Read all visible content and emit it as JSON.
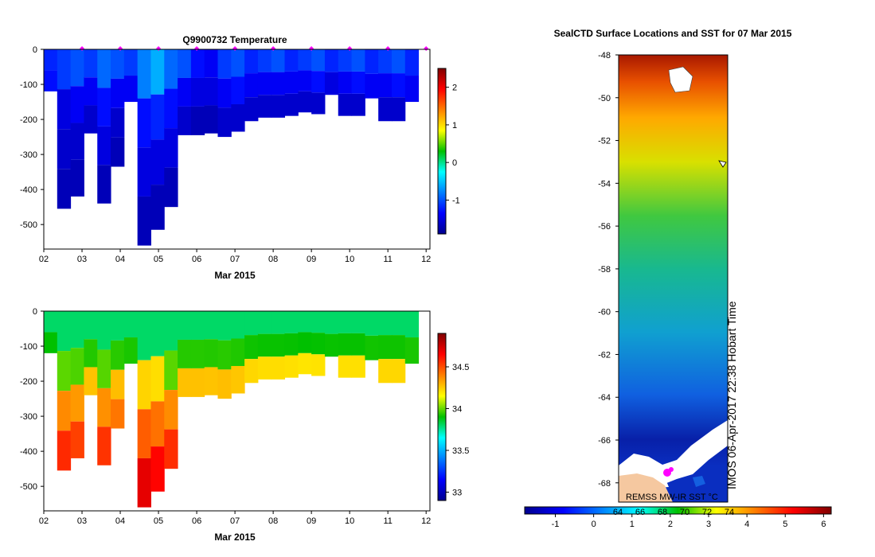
{
  "chart_data": [
    {
      "type": "heatmap",
      "title": "Q9900732  Temperature",
      "xlabel": "Mar 2015",
      "ylabel": "",
      "x_ticks": [
        "02",
        "03",
        "04",
        "05",
        "06",
        "07",
        "08",
        "09",
        "10",
        "11",
        "12"
      ],
      "y_ticks": [
        0,
        -100,
        -200,
        -300,
        -400,
        -500
      ],
      "ylim": [
        -570,
        0
      ],
      "xlim": [
        2,
        12.1
      ],
      "colorbar": {
        "ticks": [
          -1,
          0,
          1,
          2
        ],
        "range": [
          -1.9,
          2.5
        ]
      },
      "profiles": [
        {
          "x": 2.2,
          "depth": 120,
          "v": [
            -1.2,
            -1.3
          ]
        },
        {
          "x": 2.55,
          "depth": 455,
          "v": [
            -1.1,
            -1.5,
            -1.6,
            -1.7
          ]
        },
        {
          "x": 2.9,
          "depth": 420,
          "v": [
            -1.0,
            -1.4,
            -1.6,
            -1.7
          ]
        },
        {
          "x": 3.25,
          "depth": 240,
          "v": [
            -1.1,
            -1.4,
            -1.6
          ]
        },
        {
          "x": 3.6,
          "depth": 440,
          "v": [
            -0.9,
            -1.3,
            -1.5,
            -1.7
          ]
        },
        {
          "x": 3.95,
          "depth": 335,
          "v": [
            -1.0,
            -1.4,
            -1.6,
            -1.7
          ]
        },
        {
          "x": 4.3,
          "depth": 150,
          "v": [
            -1.1,
            -1.4
          ]
        },
        {
          "x": 4.65,
          "depth": 560,
          "v": [
            -0.8,
            -1.3,
            -1.5,
            -1.7
          ]
        },
        {
          "x": 5.0,
          "depth": 515,
          "v": [
            -0.6,
            -1.2,
            -1.5,
            -1.7
          ]
        },
        {
          "x": 5.35,
          "depth": 450,
          "v": [
            -0.9,
            -1.3,
            -1.5,
            -1.7
          ]
        },
        {
          "x": 5.7,
          "depth": 245,
          "v": [
            -1.0,
            -1.4,
            -1.6
          ]
        },
        {
          "x": 6.05,
          "depth": 245,
          "v": [
            -1.3,
            -1.5,
            -1.7
          ]
        },
        {
          "x": 6.4,
          "depth": 240,
          "v": [
            -1.4,
            -1.5,
            -1.7
          ]
        },
        {
          "x": 6.75,
          "depth": 250,
          "v": [
            -1.1,
            -1.4,
            -1.6
          ]
        },
        {
          "x": 7.1,
          "depth": 235,
          "v": [
            -1.0,
            -1.3,
            -1.6
          ]
        },
        {
          "x": 7.45,
          "depth": 205,
          "v": [
            -1.2,
            -1.4,
            -1.6
          ]
        },
        {
          "x": 7.8,
          "depth": 195,
          "v": [
            -1.1,
            -1.4,
            -1.6
          ]
        },
        {
          "x": 8.15,
          "depth": 195,
          "v": [
            -1.0,
            -1.4,
            -1.6
          ]
        },
        {
          "x": 8.5,
          "depth": 190,
          "v": [
            -1.2,
            -1.4,
            -1.6
          ]
        },
        {
          "x": 8.85,
          "depth": 180,
          "v": [
            -1.1,
            -1.4,
            -1.6
          ]
        },
        {
          "x": 9.2,
          "depth": 185,
          "v": [
            -1.0,
            -1.3,
            -1.6
          ]
        },
        {
          "x": 9.55,
          "depth": 130,
          "v": [
            -1.2,
            -1.5
          ]
        },
        {
          "x": 9.9,
          "depth": 190,
          "v": [
            -1.1,
            -1.4,
            -1.6
          ]
        },
        {
          "x": 10.25,
          "depth": 190,
          "v": [
            -1.0,
            -1.3,
            -1.6
          ]
        },
        {
          "x": 10.6,
          "depth": 140,
          "v": [
            -1.2,
            -1.4
          ]
        },
        {
          "x": 10.95,
          "depth": 205,
          "v": [
            -1.1,
            -1.4,
            -1.6
          ]
        },
        {
          "x": 11.3,
          "depth": 205,
          "v": [
            -1.0,
            -1.3,
            -1.6
          ]
        },
        {
          "x": 11.65,
          "depth": 150,
          "v": [
            -1.2,
            -1.4
          ]
        }
      ],
      "surface_markers_x": [
        3.0,
        4.0,
        5.0,
        6.0,
        7.0,
        8.0,
        9.0,
        10.0,
        11.0,
        12.0
      ]
    },
    {
      "type": "heatmap",
      "title": "",
      "xlabel": "Mar 2015",
      "ylabel": "",
      "x_ticks": [
        "02",
        "03",
        "04",
        "05",
        "06",
        "07",
        "08",
        "09",
        "10",
        "11",
        "12"
      ],
      "y_ticks": [
        0,
        -100,
        -200,
        -300,
        -400,
        -500
      ],
      "ylim": [
        -570,
        0
      ],
      "xlim": [
        2,
        12.1
      ],
      "colorbar": {
        "ticks": [
          33,
          33.5,
          34,
          34.5
        ],
        "range": [
          32.9,
          34.9
        ]
      }
    },
    {
      "type": "heatmap",
      "title": "SealCTD Surface Locations and SST for 07 Mar 2015",
      "xlabel": "",
      "ylabel": "",
      "y_ticks": [
        -48,
        -50,
        -52,
        -54,
        -56,
        -58,
        -60,
        -62,
        -64,
        -66,
        -68
      ],
      "ylim": [
        -68.9,
        -48
      ],
      "colorbar": {
        "ticks": [
          -1,
          0,
          1,
          2,
          3,
          4,
          5,
          6
        ],
        "range": [
          -1.8,
          6.2
        ],
        "contour_labels": [
          "64",
          "66",
          "68",
          "70",
          "72",
          "74"
        ]
      },
      "annotations": [
        "REMSS MW-IR SST °C",
        "IMOS 06-Apr-2017 22:38 Hobart Time"
      ]
    }
  ]
}
